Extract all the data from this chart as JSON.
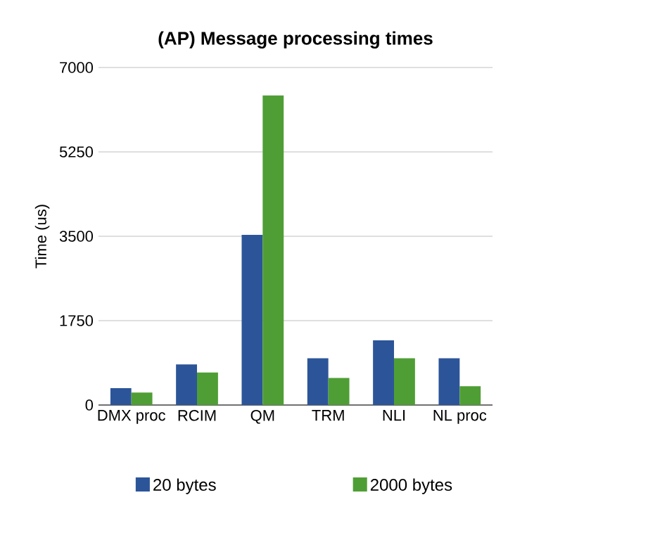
{
  "chart_data": {
    "type": "bar",
    "title": "(AP) Message processing times",
    "ylabel": "Time (us)",
    "categories": [
      "DMX proc",
      "RCIM",
      "QM",
      "TRM",
      "NLI",
      "NL proc"
    ],
    "series": [
      {
        "name": "20 bytes",
        "color": "#2c5599",
        "values": [
          350,
          840,
          3530,
          970,
          1340,
          970
        ]
      },
      {
        "name": "2000 bytes",
        "color": "#4f9e35",
        "values": [
          260,
          675,
          6420,
          560,
          970,
          390
        ]
      }
    ],
    "ylim": [
      0,
      7000
    ],
    "yticks": [
      0,
      1750,
      3500,
      5250,
      7000
    ],
    "grid": "y",
    "legend": "bottom"
  }
}
